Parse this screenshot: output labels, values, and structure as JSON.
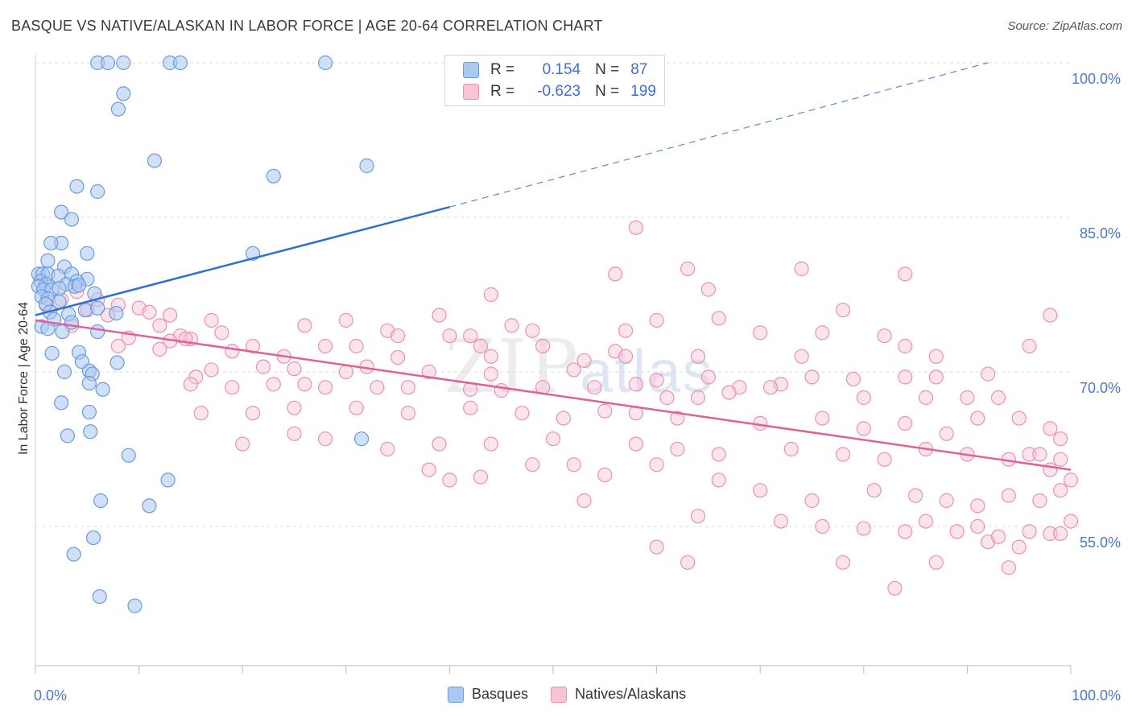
{
  "header": {
    "title": "BASQUE VS NATIVE/ALASKAN IN LABOR FORCE | AGE 20-64 CORRELATION CHART",
    "source": "Source: ZipAtlas.com"
  },
  "watermark": {
    "zip": "ZIP",
    "atlas": "atlas"
  },
  "legend": {
    "rows": [
      {
        "r_label": "R =",
        "r_value": "0.154",
        "n_label": "N =",
        "n_value": "87",
        "color": "#aac8f0",
        "border": "#6a9ae0"
      },
      {
        "r_label": "R =",
        "r_value": "-0.623",
        "n_label": "N =",
        "n_value": "199",
        "color": "#f8c4d6",
        "border": "#ec90b0"
      }
    ]
  },
  "bottom_legend": [
    "Basques",
    "Natives/Alaskans"
  ],
  "colors": {
    "blue_fill": "#aac8f0",
    "blue_stroke": "#6a9ae0",
    "blue_line": "#2e6fd0",
    "pink_fill": "#f8c4d6",
    "pink_stroke": "#ec90b0",
    "pink_line": "#e0609a",
    "grid": "#dcdcdc",
    "axis_text": "#4a78c8"
  },
  "chart_data": {
    "type": "scatter",
    "title": "BASQUE VS NATIVE/ALASKAN IN LABOR FORCE | AGE 20-64 CORRELATION CHART",
    "xlabel": "",
    "ylabel": "In Labor Force | Age 20-64",
    "xlim": [
      0,
      100
    ],
    "ylim": [
      40,
      102
    ],
    "x_tick_labels": [
      "0.0%",
      "100.0%"
    ],
    "y_ticks": [
      55,
      70,
      85,
      100
    ],
    "y_tick_labels": [
      "55.0%",
      "70.0%",
      "85.0%",
      "100.0%"
    ],
    "grid": true,
    "series": [
      {
        "name": "Basques",
        "r": 0.154,
        "n": 87,
        "trend": {
          "x0": 0,
          "y0": 75.5,
          "x1": 40,
          "y1": 86.0,
          "dashed_to_x": 92,
          "dashed_to_y": 100
        },
        "points": [
          [
            6,
            100
          ],
          [
            7,
            100
          ],
          [
            8.5,
            100
          ],
          [
            13,
            100
          ],
          [
            14,
            100
          ],
          [
            28,
            100
          ],
          [
            8.5,
            97
          ],
          [
            8,
            95.5
          ],
          [
            11.5,
            90.5
          ],
          [
            23,
            89
          ],
          [
            32,
            90
          ],
          [
            4,
            88
          ],
          [
            6,
            87.5
          ],
          [
            2.5,
            85.5
          ],
          [
            3.5,
            84.8
          ],
          [
            2.5,
            82.5
          ],
          [
            1.5,
            82.5
          ],
          [
            5,
            81.5
          ],
          [
            21,
            81.5
          ],
          [
            1.2,
            80.8
          ],
          [
            2.8,
            80.2
          ],
          [
            0.3,
            79.5
          ],
          [
            0.7,
            79.5
          ],
          [
            1.2,
            79.5
          ],
          [
            2.2,
            79.3
          ],
          [
            3.5,
            79.5
          ],
          [
            5,
            79.0
          ],
          [
            4,
            78.8
          ],
          [
            0.5,
            78.8
          ],
          [
            1,
            78.5
          ],
          [
            3,
            78.5
          ],
          [
            3.8,
            78.3
          ],
          [
            0.3,
            78.3
          ],
          [
            0.8,
            78.0
          ],
          [
            1.6,
            78.0
          ],
          [
            2.3,
            78.1
          ],
          [
            4.2,
            78.4
          ],
          [
            5.7,
            77.6
          ],
          [
            0.6,
            77.3
          ],
          [
            1.2,
            77.1
          ],
          [
            2.3,
            76.8
          ],
          [
            1.0,
            76.6
          ],
          [
            4.8,
            76.0
          ],
          [
            6,
            76.2
          ],
          [
            1.4,
            75.8
          ],
          [
            3.2,
            75.6
          ],
          [
            7.8,
            75.7
          ],
          [
            1.8,
            75.1
          ],
          [
            3.5,
            74.8
          ],
          [
            0.6,
            74.4
          ],
          [
            1.2,
            74.2
          ],
          [
            2.6,
            73.9
          ],
          [
            6,
            73.9
          ],
          [
            1.6,
            71.8
          ],
          [
            4.2,
            71.9
          ],
          [
            4.5,
            71.0
          ],
          [
            7.9,
            70.9
          ],
          [
            2.8,
            70.0
          ],
          [
            5.2,
            70.1
          ],
          [
            5.5,
            69.8
          ],
          [
            5.2,
            68.9
          ],
          [
            6.5,
            68.3
          ],
          [
            2.5,
            67.0
          ],
          [
            5.2,
            66.1
          ],
          [
            5.3,
            64.2
          ],
          [
            3.1,
            63.8
          ],
          [
            31.5,
            63.5
          ],
          [
            9,
            61.9
          ],
          [
            12.8,
            59.5
          ],
          [
            6.3,
            57.5
          ],
          [
            11,
            57.0
          ],
          [
            5.6,
            53.9
          ],
          [
            3.7,
            52.3
          ],
          [
            6.2,
            48.2
          ],
          [
            9.6,
            47.3
          ]
        ]
      },
      {
        "name": "Natives/Alaskans",
        "r": -0.623,
        "n": 199,
        "trend": {
          "x0": 0,
          "y0": 75.0,
          "x1": 100,
          "y1": 60.5
        },
        "points": [
          [
            58,
            84
          ],
          [
            63,
            80
          ],
          [
            74,
            80
          ],
          [
            84,
            79.5
          ],
          [
            56,
            79.5
          ],
          [
            44,
            77.5
          ],
          [
            65,
            78
          ],
          [
            4,
            77.8
          ],
          [
            6,
            77
          ],
          [
            8,
            76.5
          ],
          [
            13,
            75.5
          ],
          [
            17,
            75
          ],
          [
            30,
            75
          ],
          [
            39,
            75.5
          ],
          [
            46,
            74.5
          ],
          [
            60,
            75
          ],
          [
            66,
            75.2
          ],
          [
            78,
            76
          ],
          [
            98,
            75.5
          ],
          [
            1,
            76.5
          ],
          [
            2.5,
            77
          ],
          [
            5,
            76
          ],
          [
            7,
            75.5
          ],
          [
            10,
            76.2
          ],
          [
            11,
            75.8
          ],
          [
            3.5,
            74.5
          ],
          [
            12,
            74.5
          ],
          [
            14,
            73.5
          ],
          [
            15,
            73.2
          ],
          [
            18,
            73.8
          ],
          [
            26,
            74.5
          ],
          [
            34,
            74
          ],
          [
            35,
            73.5
          ],
          [
            40,
            73.5
          ],
          [
            42,
            73.5
          ],
          [
            48,
            74
          ],
          [
            57,
            74
          ],
          [
            70,
            73.8
          ],
          [
            76,
            73.8
          ],
          [
            82,
            73.5
          ],
          [
            9,
            73.3
          ],
          [
            13,
            73
          ],
          [
            14.5,
            73.2
          ],
          [
            21,
            72.5
          ],
          [
            28,
            72.5
          ],
          [
            31,
            72.5
          ],
          [
            43,
            72.5
          ],
          [
            49,
            72.5
          ],
          [
            56,
            72
          ],
          [
            64,
            71.5
          ],
          [
            84,
            72.5
          ],
          [
            96,
            72.5
          ],
          [
            8,
            72.5
          ],
          [
            12,
            72.2
          ],
          [
            19,
            72.0
          ],
          [
            24,
            71.5
          ],
          [
            35,
            71.4
          ],
          [
            44,
            71.5
          ],
          [
            53,
            71.1
          ],
          [
            57,
            71.5
          ],
          [
            74,
            71.5
          ],
          [
            87,
            71.5
          ],
          [
            15.5,
            69.5
          ],
          [
            17,
            70.2
          ],
          [
            22,
            70.5
          ],
          [
            25,
            70.3
          ],
          [
            30,
            70
          ],
          [
            32,
            70.5
          ],
          [
            38,
            70
          ],
          [
            44,
            69.8
          ],
          [
            52,
            70.2
          ],
          [
            60,
            69.2
          ],
          [
            65,
            69.5
          ],
          [
            68,
            68.5
          ],
          [
            72,
            68.8
          ],
          [
            75,
            69.5
          ],
          [
            79,
            69.3
          ],
          [
            84,
            69.5
          ],
          [
            87,
            69.5
          ],
          [
            92,
            69.8
          ],
          [
            15,
            68.8
          ],
          [
            19,
            68.5
          ],
          [
            23,
            68.8
          ],
          [
            26,
            68.8
          ],
          [
            28,
            68.5
          ],
          [
            33,
            68.5
          ],
          [
            36,
            68.5
          ],
          [
            42,
            68.3
          ],
          [
            45,
            68.2
          ],
          [
            49,
            68.5
          ],
          [
            54,
            68.5
          ],
          [
            58,
            68.8
          ],
          [
            61,
            67.5
          ],
          [
            64,
            67.5
          ],
          [
            67,
            68
          ],
          [
            71,
            68.5
          ],
          [
            80,
            67.5
          ],
          [
            86,
            67.5
          ],
          [
            90,
            67.5
          ],
          [
            93,
            67.5
          ],
          [
            16,
            66
          ],
          [
            21,
            66
          ],
          [
            25,
            66.5
          ],
          [
            31,
            66.5
          ],
          [
            36,
            66
          ],
          [
            42,
            66.5
          ],
          [
            47,
            66
          ],
          [
            51,
            65.5
          ],
          [
            55,
            66.2
          ],
          [
            58,
            66
          ],
          [
            62,
            65.5
          ],
          [
            70,
            65
          ],
          [
            76,
            65.5
          ],
          [
            80,
            64.5
          ],
          [
            84,
            65
          ],
          [
            88,
            64
          ],
          [
            91,
            65.5
          ],
          [
            95,
            65.5
          ],
          [
            98,
            64.5
          ],
          [
            99,
            63.5
          ],
          [
            20,
            63
          ],
          [
            25,
            64
          ],
          [
            28,
            63.5
          ],
          [
            34,
            62.5
          ],
          [
            39,
            63
          ],
          [
            44,
            63
          ],
          [
            50,
            63.5
          ],
          [
            58,
            63
          ],
          [
            62,
            62.5
          ],
          [
            66,
            62
          ],
          [
            73,
            62.5
          ],
          [
            78,
            62
          ],
          [
            82,
            61.5
          ],
          [
            86,
            62.5
          ],
          [
            90,
            62
          ],
          [
            94,
            61.5
          ],
          [
            96,
            62
          ],
          [
            99,
            61.5
          ],
          [
            48,
            61
          ],
          [
            52,
            61
          ],
          [
            38,
            60.5
          ],
          [
            40,
            59.5
          ],
          [
            43,
            59.8
          ],
          [
            55,
            60
          ],
          [
            60,
            61
          ],
          [
            66,
            59.5
          ],
          [
            70,
            58.5
          ],
          [
            75,
            57.5
          ],
          [
            81,
            58.5
          ],
          [
            85,
            58
          ],
          [
            88,
            57.5
          ],
          [
            91,
            57
          ],
          [
            94,
            58
          ],
          [
            97,
            57.5
          ],
          [
            100,
            59.5
          ],
          [
            53,
            57.5
          ],
          [
            64,
            56
          ],
          [
            72,
            55.5
          ],
          [
            76,
            55
          ],
          [
            80,
            54.8
          ],
          [
            84,
            54.5
          ],
          [
            86,
            55.5
          ],
          [
            89,
            54.5
          ],
          [
            92,
            53.5
          ],
          [
            96,
            54.5
          ],
          [
            98,
            54.3
          ],
          [
            99,
            54.3
          ],
          [
            60,
            53
          ],
          [
            63,
            51.5
          ],
          [
            78,
            51.5
          ],
          [
            83,
            49
          ],
          [
            87,
            51.5
          ],
          [
            94,
            51
          ],
          [
            98,
            60.5
          ],
          [
            100,
            55.5
          ],
          [
            99,
            58.5
          ],
          [
            97,
            62
          ],
          [
            95,
            53
          ],
          [
            93,
            54
          ],
          [
            91,
            55
          ]
        ]
      }
    ]
  }
}
